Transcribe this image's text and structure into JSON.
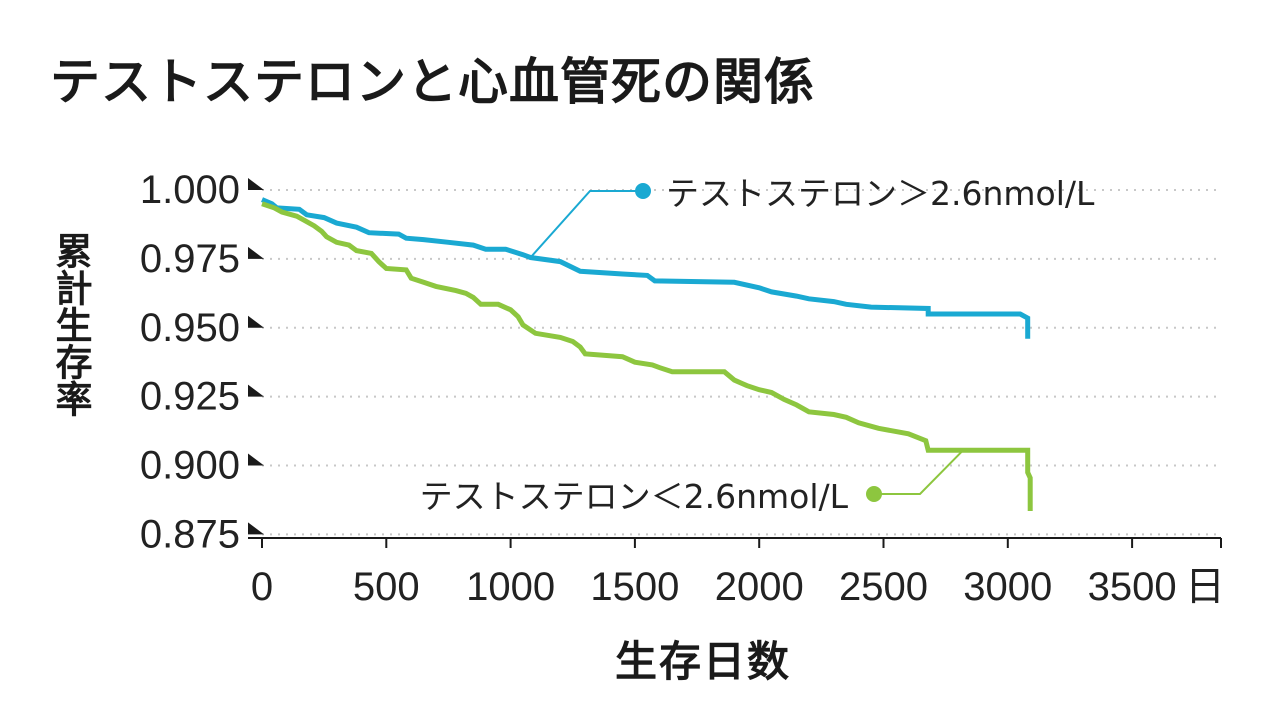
{
  "chart_data": {
    "type": "line",
    "title": "テストステロンと心血管死の関係",
    "xlabel": "生存日数",
    "ylabel": "累計生存率",
    "x_unit": "日",
    "xlim": [
      0,
      3500
    ],
    "ylim": [
      0.875,
      1.0
    ],
    "x_ticks": [
      "0",
      "500",
      "1000",
      "1500",
      "2000",
      "2500",
      "3000",
      "3500"
    ],
    "y_ticks": [
      "1.000",
      "0.975",
      "0.950",
      "0.925",
      "0.900",
      "0.875"
    ],
    "grid": true,
    "series": [
      {
        "name": "テストステロン＞2.6nmol/L",
        "color": "#1aa9d2",
        "points": [
          [
            0,
            0.9965
          ],
          [
            40,
            0.995
          ],
          [
            60,
            0.9935
          ],
          [
            150,
            0.993
          ],
          [
            180,
            0.991
          ],
          [
            250,
            0.99
          ],
          [
            300,
            0.988
          ],
          [
            380,
            0.9865
          ],
          [
            430,
            0.9845
          ],
          [
            550,
            0.984
          ],
          [
            580,
            0.9825
          ],
          [
            650,
            0.982
          ],
          [
            750,
            0.981
          ],
          [
            850,
            0.98
          ],
          [
            900,
            0.9785
          ],
          [
            980,
            0.9785
          ],
          [
            1050,
            0.9765
          ],
          [
            1080,
            0.9755
          ],
          [
            1200,
            0.974
          ],
          [
            1280,
            0.9705
          ],
          [
            1450,
            0.9695
          ],
          [
            1550,
            0.969
          ],
          [
            1580,
            0.967
          ],
          [
            1900,
            0.9665
          ],
          [
            2000,
            0.9645
          ],
          [
            2050,
            0.963
          ],
          [
            2150,
            0.9615
          ],
          [
            2200,
            0.9605
          ],
          [
            2300,
            0.9595
          ],
          [
            2350,
            0.9585
          ],
          [
            2450,
            0.9575
          ],
          [
            2680,
            0.957
          ],
          [
            2680,
            0.955
          ],
          [
            3050,
            0.955
          ],
          [
            3080,
            0.9535
          ],
          [
            3080,
            0.946
          ]
        ]
      },
      {
        "name": "テストステロン＜2.6nmol/L",
        "color": "#8dc63f",
        "points": [
          [
            0,
            0.995
          ],
          [
            50,
            0.9935
          ],
          [
            80,
            0.992
          ],
          [
            140,
            0.9905
          ],
          [
            170,
            0.989
          ],
          [
            210,
            0.987
          ],
          [
            240,
            0.985
          ],
          [
            260,
            0.983
          ],
          [
            300,
            0.981
          ],
          [
            350,
            0.98
          ],
          [
            380,
            0.978
          ],
          [
            440,
            0.977
          ],
          [
            470,
            0.974
          ],
          [
            500,
            0.9715
          ],
          [
            580,
            0.971
          ],
          [
            600,
            0.968
          ],
          [
            650,
            0.9665
          ],
          [
            700,
            0.965
          ],
          [
            780,
            0.9635
          ],
          [
            820,
            0.9625
          ],
          [
            850,
            0.961
          ],
          [
            880,
            0.9585
          ],
          [
            950,
            0.9585
          ],
          [
            1000,
            0.9565
          ],
          [
            1030,
            0.954
          ],
          [
            1050,
            0.951
          ],
          [
            1100,
            0.948
          ],
          [
            1200,
            0.9465
          ],
          [
            1250,
            0.945
          ],
          [
            1280,
            0.943
          ],
          [
            1300,
            0.9405
          ],
          [
            1450,
            0.9395
          ],
          [
            1500,
            0.9375
          ],
          [
            1570,
            0.9365
          ],
          [
            1600,
            0.9355
          ],
          [
            1650,
            0.934
          ],
          [
            1860,
            0.934
          ],
          [
            1900,
            0.931
          ],
          [
            1950,
            0.929
          ],
          [
            2000,
            0.9275
          ],
          [
            2050,
            0.9265
          ],
          [
            2100,
            0.924
          ],
          [
            2150,
            0.922
          ],
          [
            2200,
            0.9195
          ],
          [
            2300,
            0.9185
          ],
          [
            2350,
            0.9175
          ],
          [
            2400,
            0.9155
          ],
          [
            2480,
            0.9135
          ],
          [
            2600,
            0.9115
          ],
          [
            2670,
            0.909
          ],
          [
            2680,
            0.9055
          ],
          [
            3080,
            0.9055
          ],
          [
            3080,
            0.8975
          ],
          [
            3090,
            0.8955
          ],
          [
            3090,
            0.8835
          ]
        ]
      }
    ],
    "annotations": [
      {
        "label": "テストステロン＞2.6nmol/L",
        "series": 0,
        "line_from_x": 1080
      },
      {
        "label": "テストステロン＜2.6nmol/L",
        "series": 1,
        "line_from_x": 2820
      }
    ]
  }
}
